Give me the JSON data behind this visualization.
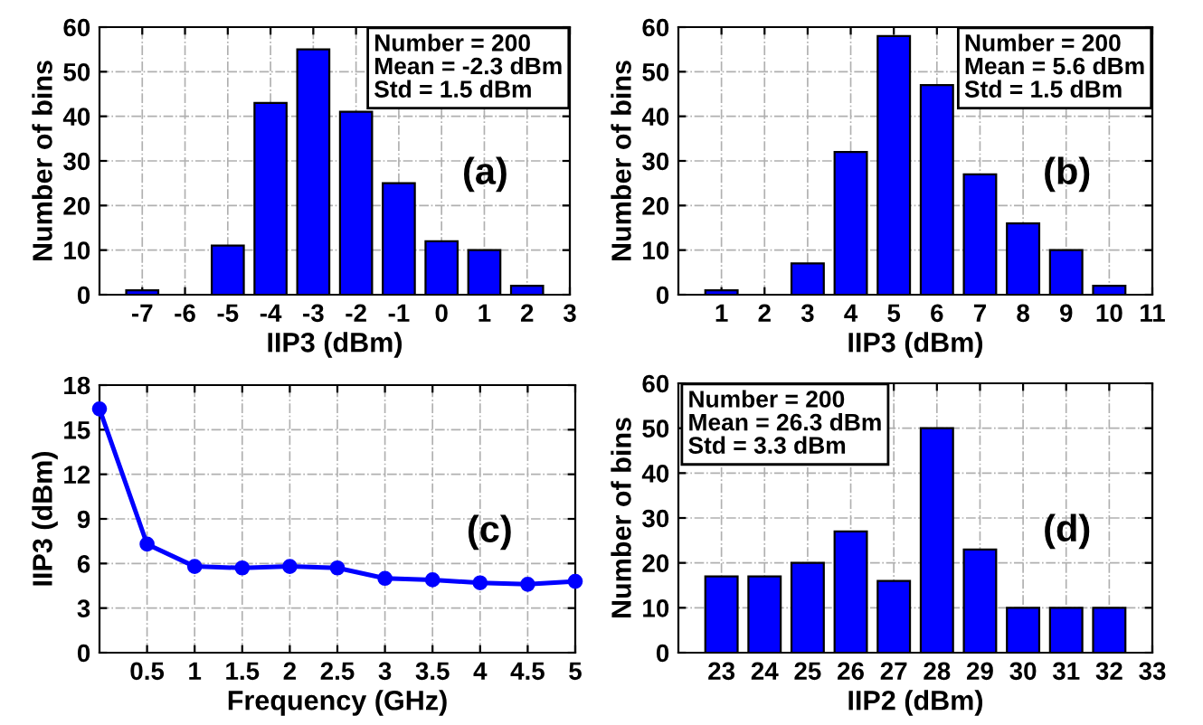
{
  "chart_data": [
    {
      "type": "bar",
      "xlabel": "IIP3 (dBm)",
      "ylabel": "Number of bins",
      "x": [
        -7,
        -6,
        -5,
        -4,
        -3,
        -2,
        -1,
        0,
        1,
        2
      ],
      "series": [
        {
          "color": "#0000ff",
          "values": [
            1,
            0,
            11,
            43,
            55,
            41,
            25,
            12,
            10,
            2
          ]
        }
      ],
      "xlim": [
        -8,
        3
      ],
      "xticks": [
        -7,
        -6,
        -5,
        -4,
        -3,
        -2,
        -1,
        0,
        1,
        2,
        3
      ],
      "ylim": [
        0,
        60
      ],
      "yticks": [
        0,
        10,
        20,
        30,
        40,
        50,
        60
      ],
      "grid": true,
      "annotations": [
        "Number = 200\nMean = -2.3 dBm\nStd = 1.5 dBm",
        "(a)"
      ]
    },
    {
      "type": "bar",
      "xlabel": "IIP3 (dBm)",
      "ylabel": "Number of bins",
      "x": [
        1,
        2,
        3,
        4,
        5,
        6,
        7,
        8,
        9,
        10
      ],
      "series": [
        {
          "color": "#0000ff",
          "values": [
            1,
            0,
            7,
            32,
            58,
            47,
            27,
            16,
            10,
            2
          ]
        }
      ],
      "xlim": [
        0,
        11
      ],
      "xticks": [
        1,
        2,
        3,
        4,
        5,
        6,
        7,
        8,
        9,
        10,
        11
      ],
      "ylim": [
        0,
        60
      ],
      "yticks": [
        0,
        10,
        20,
        30,
        40,
        50,
        60
      ],
      "grid": true,
      "annotations": [
        "Number = 200\nMean = 5.6 dBm\nStd = 1.5 dBm",
        "(b)"
      ]
    },
    {
      "type": "line",
      "xlabel": "Frequency (GHz)",
      "ylabel": "IIP3 (dBm)",
      "x": [
        0,
        0.5,
        1,
        1.5,
        2,
        2.5,
        3,
        3.5,
        4,
        4.5,
        5
      ],
      "series": [
        {
          "color": "#0000ff",
          "values": [
            16.4,
            7.3,
            5.8,
            5.7,
            5.8,
            5.7,
            5.0,
            4.9,
            4.7,
            4.6,
            4.8
          ]
        }
      ],
      "xlim": [
        0,
        5
      ],
      "xticks": [
        0.5,
        1,
        1.5,
        2,
        2.5,
        3,
        3.5,
        4,
        4.5,
        5
      ],
      "ylim": [
        0,
        18
      ],
      "yticks": [
        0,
        3,
        6,
        9,
        12,
        15,
        18
      ],
      "grid": true,
      "marker": "circle",
      "line_style": "solid",
      "annotations": [
        "(c)"
      ]
    },
    {
      "type": "bar",
      "xlabel": "IIP2 (dBm)",
      "ylabel": "Number of bins",
      "x": [
        23,
        24,
        25,
        26,
        27,
        28,
        29,
        30,
        31,
        32
      ],
      "series": [
        {
          "color": "#0000ff",
          "values": [
            17,
            17,
            20,
            27,
            16,
            50,
            23,
            10,
            10,
            10
          ]
        }
      ],
      "xlim": [
        22,
        33
      ],
      "xticks": [
        23,
        24,
        25,
        26,
        27,
        28,
        29,
        30,
        31,
        32,
        33
      ],
      "ylim": [
        0,
        60
      ],
      "yticks": [
        0,
        10,
        20,
        30,
        40,
        50,
        60
      ],
      "grid": true,
      "annotations": [
        "Number = 200\nMean = 26.3 dBm\nStd = 3.3 dBm",
        "(d)"
      ]
    }
  ]
}
